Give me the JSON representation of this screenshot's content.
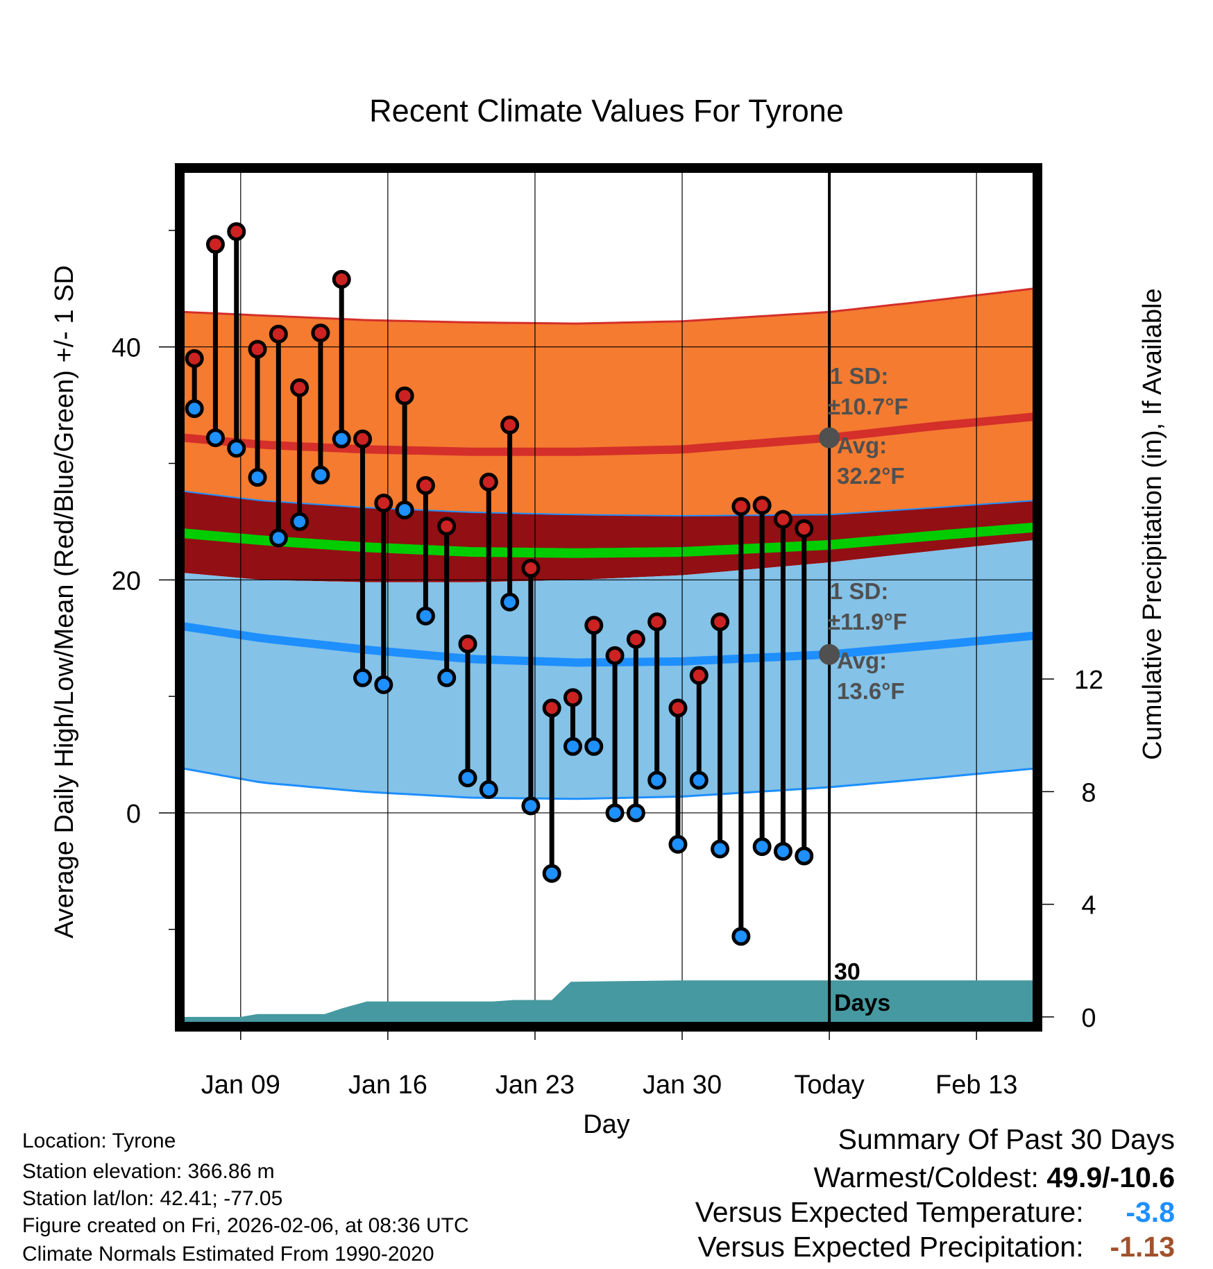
{
  "chart_data": {
    "type": "line",
    "title": "Recent Climate Values For Tyrone",
    "xlabel": "Day",
    "ylabel": "Average Daily High/Low/Mean (Red/Blue/Green) +/- 1 SD",
    "y2label": "Cumulative Precipitation (in), If Available",
    "x_ticks": [
      {
        "day": 9,
        "label": "Jan 09"
      },
      {
        "day": 16,
        "label": "Jan 16"
      },
      {
        "day": 23,
        "label": "Jan 23"
      },
      {
        "day": 30,
        "label": "Jan 30"
      },
      {
        "day": 37,
        "label": "Today"
      },
      {
        "day": 44,
        "label": "Feb 13"
      }
    ],
    "xlim": [
      6.3,
      46.7
    ],
    "ylim": [
      -18,
      55
    ],
    "y_ticks": [
      0,
      20,
      40
    ],
    "y_minor_ticks": [
      -10,
      10,
      30,
      50
    ],
    "y2lim": [
      -0.2,
      30
    ],
    "y2_ticks": [
      0,
      4,
      8,
      12
    ],
    "today_day": 37,
    "normal_days": [
      6.3,
      10,
      15,
      20,
      25,
      30,
      37,
      42,
      46.7
    ],
    "normal_high_avg": [
      32.2,
      31.6,
      31.2,
      31.0,
      31.0,
      31.2,
      32.2,
      33.2,
      34.0
    ],
    "normal_high_upper": [
      43.0,
      42.7,
      42.3,
      42.1,
      42.0,
      42.2,
      43.0,
      44.0,
      45.0
    ],
    "normal_high_lower": [
      27.6,
      26.8,
      26.2,
      25.8,
      25.6,
      25.5,
      25.6,
      26.2,
      26.8
    ],
    "normal_mean": [
      24.0,
      23.4,
      22.8,
      22.4,
      22.3,
      22.4,
      23.0,
      23.8,
      24.5
    ],
    "normal_low_upper": [
      20.6,
      20.0,
      19.8,
      19.8,
      20.0,
      20.4,
      21.5,
      22.5,
      23.4
    ],
    "normal_low_avg": [
      16.0,
      15.0,
      14.0,
      13.2,
      12.9,
      13.0,
      13.6,
      14.4,
      15.2
    ],
    "normal_low_lower": [
      3.8,
      2.6,
      1.8,
      1.3,
      1.2,
      1.4,
      2.2,
      3.0,
      3.8
    ],
    "series": [
      {
        "name": "Daily High",
        "color": "#cc2222",
        "days": [
          6.8,
          7.8,
          8.8,
          9.8,
          10.8,
          11.8,
          12.8,
          13.8,
          14.8,
          15.8,
          16.8,
          17.8,
          18.8,
          19.8,
          20.8,
          21.8,
          22.8,
          23.8,
          24.8,
          25.8,
          26.8,
          27.8,
          28.8,
          29.8,
          30.8,
          31.8,
          32.8,
          33.8,
          34.8,
          35.8
        ],
        "values": [
          39.0,
          48.8,
          49.9,
          39.8,
          41.1,
          36.5,
          41.2,
          45.8,
          32.1,
          26.6,
          35.8,
          28.1,
          24.6,
          14.5,
          28.4,
          33.3,
          21.0,
          9.0,
          9.9,
          16.1,
          13.5,
          14.9,
          16.4,
          9.0,
          11.8,
          16.4,
          26.3,
          26.4,
          25.2,
          24.4
        ]
      },
      {
        "name": "Daily Low",
        "color": "#1e90ff",
        "days": [
          6.8,
          7.8,
          8.8,
          9.8,
          10.8,
          11.8,
          12.8,
          13.8,
          14.8,
          15.8,
          16.8,
          17.8,
          18.8,
          19.8,
          20.8,
          21.8,
          22.8,
          23.8,
          24.8,
          25.8,
          26.8,
          27.8,
          28.8,
          29.8,
          30.8,
          31.8,
          32.8,
          33.8,
          34.8,
          35.8
        ],
        "values": [
          34.7,
          32.2,
          31.3,
          28.8,
          23.6,
          25.0,
          29.0,
          32.1,
          11.6,
          11.0,
          26.0,
          16.9,
          11.6,
          3.0,
          2.0,
          18.1,
          0.6,
          -5.2,
          5.7,
          5.7,
          0.0,
          0.0,
          2.8,
          -2.7,
          2.8,
          -3.1,
          -10.6,
          -2.9,
          -3.3,
          -3.7
        ]
      },
      {
        "name": "Cumulative Precipitation",
        "color": "#4699a0",
        "days": [
          6.3,
          9.0,
          9.8,
          12.0,
          13.0,
          13.8,
          15.0,
          19.0,
          21.0,
          22.0,
          23.8,
          24.7,
          30.0,
          37.0,
          46.7
        ],
        "values": [
          0.0,
          0.0,
          0.1,
          0.1,
          0.1,
          0.3,
          0.55,
          0.55,
          0.55,
          0.6,
          0.6,
          1.25,
          1.3,
          1.3,
          1.3
        ]
      }
    ],
    "annotations": {
      "high_sd_title": "1 SD:",
      "high_sd_value": "±10.7°F",
      "high_avg_title": "Avg:",
      "high_avg_value": "32.2°F",
      "high_avg": 32.2,
      "low_sd_title": "1 SD:",
      "low_sd_value": "±11.9°F",
      "low_avg_title": "Avg:",
      "low_avg_value": "13.6°F",
      "low_avg": 13.6,
      "days_num": "30",
      "days_word": "Days"
    },
    "colors": {
      "high_band": "#f47b30",
      "high_line": "#d42f2a",
      "mid_band": "#920f14",
      "mean_line": "#00cc00",
      "low_band": "#84c2e8",
      "low_line": "#1e8fff",
      "precip": "#4699a0",
      "annotation": "#505050"
    }
  },
  "footer": {
    "location": "Location: Tyrone",
    "elevation": "Station elevation: 366.86 m",
    "latlon": "Station lat/lon: 42.41; -77.05",
    "created": "Figure created on Fri, 2026-02-06, at 08:36 UTC",
    "normals": "Climate Normals Estimated From 1990-2020"
  },
  "summary": {
    "title": "Summary Of Past 30 Days",
    "warm_cold_label": "Warmest/Coldest:",
    "warm_cold_value": "49.9/-10.6",
    "temp_label": "Versus Expected Temperature:",
    "temp_value": "-3.8",
    "temp_color": "#1e8fff",
    "precip_label": "Versus Expected Precipitation:",
    "precip_value": "-1.13",
    "precip_color": "#a0522d"
  }
}
